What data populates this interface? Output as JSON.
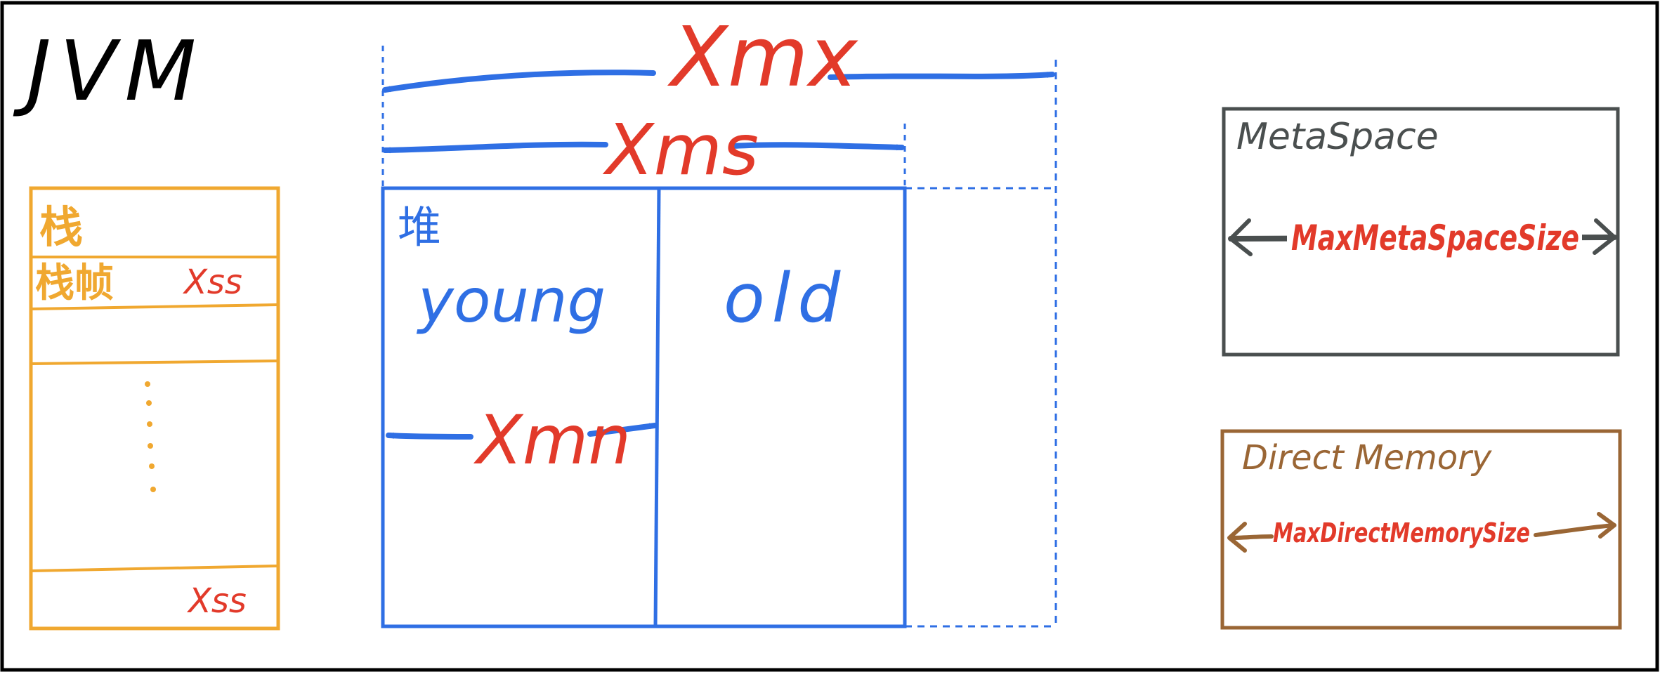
{
  "title": "JVM",
  "colors": {
    "frame": "#000000",
    "stack": "#f0a830",
    "heap": "#2f6fe4",
    "param": "#e23a2a",
    "metaspace": "#4a4f4f",
    "direct": "#9a6635"
  },
  "stack": {
    "label": "栈",
    "frame_label": "栈帧",
    "frame_param": "Xss",
    "bottom_param": "Xss"
  },
  "heap": {
    "label": "堆",
    "max_param": "Xmx",
    "init_param": "Xms",
    "young_label": "young",
    "old_label": "old",
    "young_param": "Xmn"
  },
  "metaspace": {
    "label": "MetaSpace",
    "param": "MaxMetaSpaceSize"
  },
  "direct_memory": {
    "label": "Direct Memory",
    "param": "MaxDirectMemorySize"
  }
}
